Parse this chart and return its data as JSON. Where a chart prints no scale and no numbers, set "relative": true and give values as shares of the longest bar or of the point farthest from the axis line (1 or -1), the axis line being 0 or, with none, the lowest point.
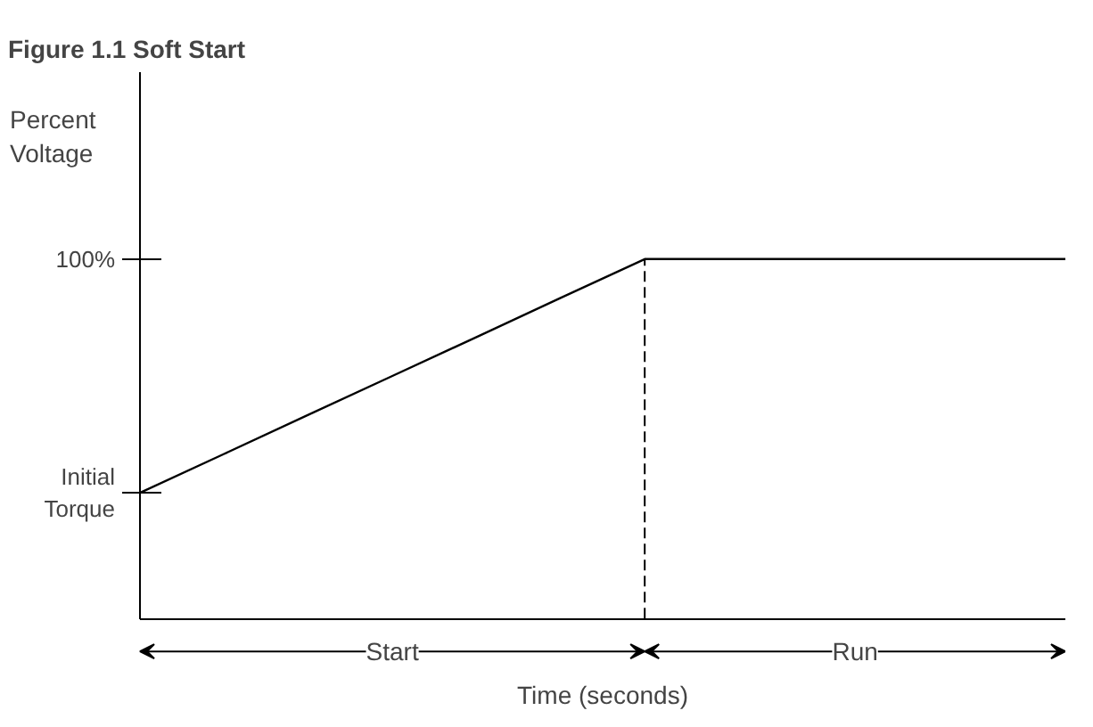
{
  "chart_data": {
    "type": "line",
    "title": "Figure 1.1    Soft Start",
    "ylabel": "Percent Voltage",
    "xlabel": "Time (seconds)",
    "categories": [
      null,
      null,
      null,
      null,
      null,
      null,
      null,
      null,
      null,
      null,
      null,
      null
    ],
    "series": [
      {
        "color": "#000000",
        "values": [
          0.35,
          0.458,
          0.567,
          0.675,
          0.783,
          0.892,
          1,
          1,
          1,
          1,
          1,
          1
        ]
      }
    ],
    "relative": true,
    "annotations": [
      "Initial\nTorque",
      "100%",
      "Start",
      "Run"
    ],
    "ref_lines": [
      {
        "axis": "x",
        "line_style": "dashed"
      }
    ],
    "grid": false,
    "line_style": "solid"
  }
}
